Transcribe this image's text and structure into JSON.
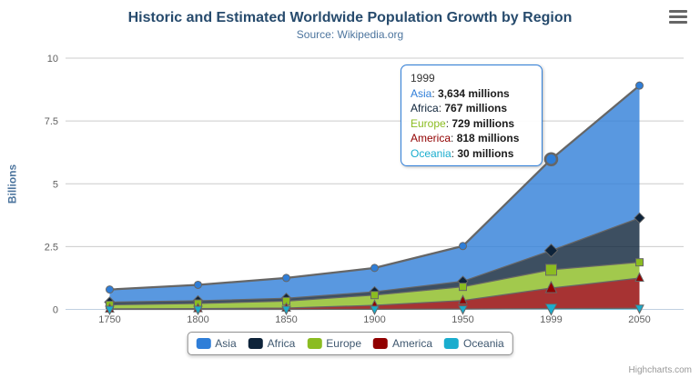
{
  "chart": {
    "credits_label": "Highcharts.com"
  },
  "chart_data": {
    "type": "area",
    "stacking": "normal",
    "title": "Historic and Estimated Worldwide Population Growth by Region",
    "subtitle": "Source: Wikipedia.org",
    "categories": [
      "1750",
      "1800",
      "1850",
      "1900",
      "1950",
      "1999",
      "2050"
    ],
    "xlabel": "",
    "ylabel": "Billions",
    "ylim": [
      0,
      10
    ],
    "yticks": [
      "0",
      "2.5",
      "5",
      "7.5",
      "10"
    ],
    "values_unit": "millions",
    "grid": true,
    "legend_position": "bottom",
    "line_color": "#666666",
    "fill_opacity": 0.8,
    "series": [
      {
        "name": "Asia",
        "color": "#2f7ed8",
        "marker": "circle",
        "values_millions": [
          502,
          635,
          809,
          947,
          1402,
          3634,
          5268
        ]
      },
      {
        "name": "Africa",
        "color": "#0d233a",
        "marker": "diamond",
        "values_millions": [
          106,
          107,
          111,
          133,
          221,
          767,
          1766
        ]
      },
      {
        "name": "Europe",
        "color": "#8bbc21",
        "marker": "square",
        "values_millions": [
          163,
          203,
          276,
          408,
          547,
          729,
          628
        ]
      },
      {
        "name": "America",
        "color": "#910000",
        "marker": "triangle",
        "values_millions": [
          18,
          31,
          54,
          156,
          339,
          818,
          1201
        ]
      },
      {
        "name": "Oceania",
        "color": "#1aadce",
        "marker": "triangle-down",
        "values_millions": [
          2,
          2,
          2,
          6,
          13,
          30,
          46
        ]
      }
    ],
    "hover": {
      "category": "1999",
      "index": 5
    }
  },
  "tooltip": {
    "header": "1999",
    "rows": [
      {
        "label": "Asia",
        "value": "3,634 millions",
        "color": "#2f7ed8"
      },
      {
        "label": "Africa",
        "value": "767 millions",
        "color": "#0d233a"
      },
      {
        "label": "Europe",
        "value": "729 millions",
        "color": "#8bbc21"
      },
      {
        "label": "America",
        "value": "818 millions",
        "color": "#910000"
      },
      {
        "label": "Oceania",
        "value": "30 millions",
        "color": "#1aadce"
      }
    ]
  },
  "legend": {
    "items": [
      {
        "label": "Asia",
        "color": "#2f7ed8"
      },
      {
        "label": "Africa",
        "color": "#0d233a"
      },
      {
        "label": "Europe",
        "color": "#8bbc21"
      },
      {
        "label": "America",
        "color": "#910000"
      },
      {
        "label": "Oceania",
        "color": "#1aadce"
      }
    ]
  },
  "colors": {
    "title": "#274b6d",
    "subtitle": "#4d759e",
    "axis_labels": "#606060",
    "axis_title": "#4d759e",
    "grid_line": "#cccccc",
    "axis_line": "#c0d0e0",
    "legend_text": "#3e576f",
    "credits": "#999999",
    "tooltip_border": "#2f7ed8"
  }
}
